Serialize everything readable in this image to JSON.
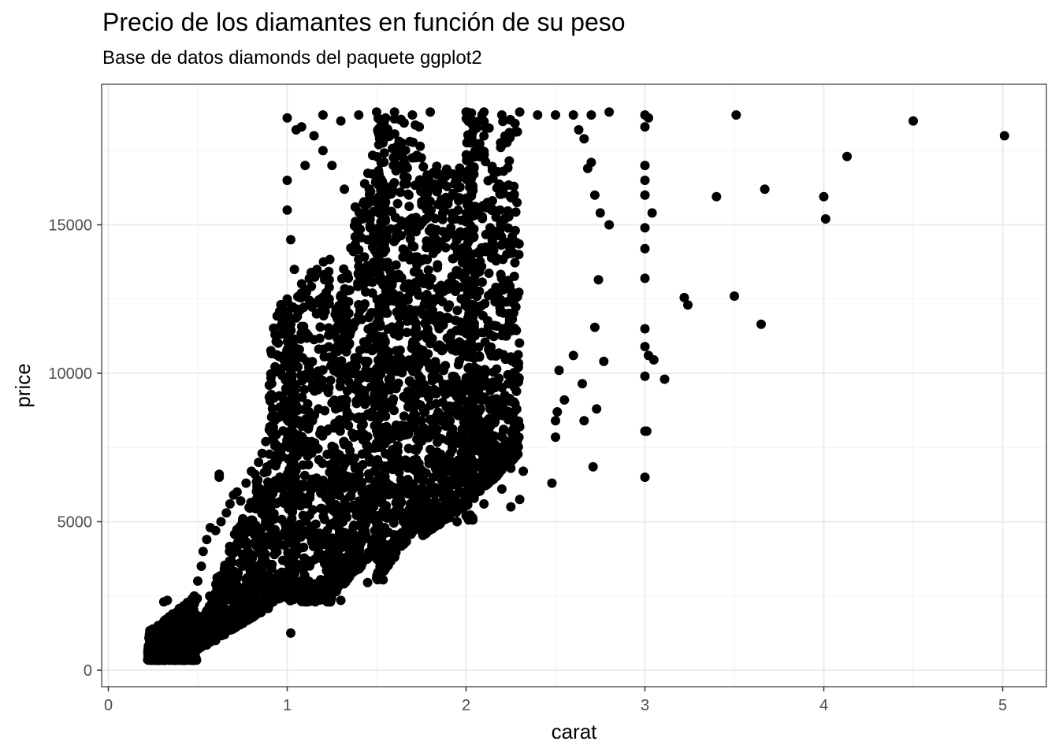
{
  "chart_data": {
    "type": "scatter",
    "title": "Precio de los diamantes en función de su peso",
    "subtitle": "Base de datos diamonds del paquete ggplot2",
    "xlabel": "carat",
    "ylabel": "price",
    "xlim": [
      0,
      5.2
    ],
    "ylim": [
      0,
      19000
    ],
    "x_ticks": [
      0,
      1,
      2,
      3,
      4,
      5
    ],
    "y_ticks": [
      0,
      5000,
      10000,
      15000
    ],
    "x_tick_labels": [
      "0",
      "1",
      "2",
      "3",
      "4",
      "5"
    ],
    "y_tick_labels": [
      "0",
      "5000",
      "10000",
      "15000"
    ],
    "grid": true,
    "point_color": "#000000",
    "series": [
      {
        "points": [
          [
            0.22,
            350
          ],
          [
            0.25,
            420
          ],
          [
            0.28,
            520
          ],
          [
            0.3,
            600
          ],
          [
            0.32,
            700
          ],
          [
            0.35,
            850
          ],
          [
            0.38,
            950
          ],
          [
            0.4,
            1000
          ],
          [
            0.42,
            1200
          ],
          [
            0.45,
            1400
          ],
          [
            0.5,
            1600
          ],
          [
            0.52,
            1800
          ],
          [
            0.55,
            2000
          ],
          [
            0.58,
            2300
          ],
          [
            0.6,
            2600
          ],
          [
            0.62,
            6600
          ],
          [
            0.62,
            6500
          ],
          [
            0.7,
            2800
          ],
          [
            0.72,
            3200
          ],
          [
            0.75,
            3500
          ],
          [
            0.8,
            3900
          ],
          [
            0.85,
            4100
          ],
          [
            0.9,
            9600
          ],
          [
            0.92,
            7800
          ],
          [
            1.02,
            1250
          ],
          [
            1.0,
            18600
          ],
          [
            1.05,
            18200
          ],
          [
            1.1,
            17000
          ],
          [
            1.2,
            18700
          ],
          [
            1.3,
            18500
          ],
          [
            1.4,
            18700
          ],
          [
            1.5,
            18800
          ],
          [
            1.55,
            18600
          ],
          [
            1.6,
            18800
          ],
          [
            1.7,
            18700
          ],
          [
            1.8,
            18800
          ],
          [
            2.0,
            18800
          ],
          [
            2.1,
            18800
          ],
          [
            2.2,
            18700
          ],
          [
            2.3,
            18800
          ],
          [
            2.4,
            18700
          ],
          [
            2.5,
            18700
          ],
          [
            2.6,
            18700
          ],
          [
            2.7,
            18700
          ],
          [
            2.8,
            18800
          ],
          [
            3.0,
            18700
          ],
          [
            3.02,
            18600
          ],
          [
            3.0,
            18300
          ],
          [
            3.0,
            17000
          ],
          [
            3.0,
            16500
          ],
          [
            3.0,
            16000
          ],
          [
            3.04,
            15400
          ],
          [
            3.0,
            14900
          ],
          [
            3.0,
            14200
          ],
          [
            3.0,
            13200
          ],
          [
            3.0,
            11500
          ],
          [
            3.0,
            10900
          ],
          [
            3.02,
            10600
          ],
          [
            3.05,
            10450
          ],
          [
            3.0,
            9900
          ],
          [
            3.11,
            9800
          ],
          [
            3.0,
            8050
          ],
          [
            3.01,
            8050
          ],
          [
            3.0,
            6500
          ],
          [
            3.22,
            12550
          ],
          [
            3.24,
            12300
          ],
          [
            3.4,
            15950
          ],
          [
            3.5,
            12600
          ],
          [
            3.51,
            18700
          ],
          [
            3.65,
            11650
          ],
          [
            3.67,
            16200
          ],
          [
            4.0,
            15950
          ],
          [
            4.01,
            15200
          ],
          [
            4.13,
            17300
          ],
          [
            4.5,
            18500
          ],
          [
            5.01,
            18000
          ],
          [
            2.48,
            6300
          ],
          [
            2.5,
            7850
          ],
          [
            2.5,
            8400
          ],
          [
            2.51,
            8700
          ],
          [
            2.52,
            10100
          ],
          [
            2.55,
            9100
          ],
          [
            2.6,
            10600
          ],
          [
            2.65,
            9650
          ],
          [
            2.66,
            8400
          ],
          [
            2.71,
            6850
          ],
          [
            2.72,
            11550
          ],
          [
            2.73,
            8800
          ],
          [
            2.74,
            13150
          ],
          [
            2.77,
            10400
          ],
          [
            2.75,
            15400
          ],
          [
            2.8,
            15000
          ],
          [
            2.72,
            16000
          ],
          [
            2.68,
            16900
          ],
          [
            2.7,
            17100
          ],
          [
            2.66,
            17900
          ],
          [
            2.63,
            18200
          ],
          [
            2.1,
            9100
          ],
          [
            2.2,
            9100
          ],
          [
            2.25,
            8500
          ],
          [
            2.3,
            8200
          ],
          [
            2.1,
            7600
          ],
          [
            2.15,
            7200
          ],
          [
            2.2,
            7000
          ],
          [
            2.25,
            6800
          ],
          [
            2.32,
            6700
          ],
          [
            2.2,
            6100
          ],
          [
            2.3,
            5750
          ],
          [
            2.25,
            5500
          ],
          [
            2.1,
            5600
          ],
          [
            2.0,
            5200
          ],
          [
            1.95,
            5000
          ],
          [
            1.9,
            6300
          ],
          [
            1.85,
            6600
          ],
          [
            1.75,
            6500
          ],
          [
            1.7,
            4700
          ],
          [
            1.65,
            5000
          ],
          [
            1.8,
            5500
          ],
          [
            1.9,
            6000
          ],
          [
            1.85,
            7000
          ],
          [
            1.8,
            8000
          ],
          [
            1.75,
            8400
          ],
          [
            1.7,
            9300
          ],
          [
            1.75,
            10600
          ],
          [
            1.8,
            11000
          ],
          [
            1.85,
            11500
          ],
          [
            1.82,
            12500
          ],
          [
            1.78,
            13200
          ],
          [
            1.7,
            14300
          ],
          [
            1.72,
            15000
          ],
          [
            1.68,
            16000
          ],
          [
            1.65,
            17000
          ],
          [
            1.45,
            2950
          ],
          [
            1.5,
            3100
          ],
          [
            1.52,
            3400
          ],
          [
            1.48,
            4000
          ],
          [
            1.4,
            4200
          ],
          [
            1.35,
            4500
          ],
          [
            1.3,
            5000
          ],
          [
            1.42,
            5600
          ],
          [
            1.47,
            6000
          ],
          [
            1.38,
            6800
          ],
          [
            1.32,
            7600
          ],
          [
            1.28,
            8200
          ],
          [
            1.25,
            9000
          ],
          [
            1.4,
            9800
          ],
          [
            1.45,
            10400
          ],
          [
            1.35,
            11300
          ],
          [
            1.3,
            12000
          ],
          [
            1.35,
            12800
          ],
          [
            1.4,
            13600
          ],
          [
            1.45,
            14500
          ],
          [
            1.42,
            15200
          ],
          [
            1.38,
            15600
          ],
          [
            1.32,
            16200
          ],
          [
            1.25,
            17000
          ],
          [
            1.2,
            17500
          ],
          [
            1.15,
            18000
          ],
          [
            1.08,
            18300
          ],
          [
            1.0,
            16500
          ],
          [
            1.0,
            15500
          ],
          [
            1.02,
            14500
          ],
          [
            1.04,
            13500
          ],
          [
            1.0,
            12500
          ],
          [
            1.01,
            11500
          ],
          [
            1.0,
            10500
          ],
          [
            1.02,
            9500
          ],
          [
            1.0,
            8500
          ],
          [
            1.01,
            7500
          ],
          [
            1.0,
            6500
          ],
          [
            1.03,
            5500
          ],
          [
            1.0,
            4800
          ],
          [
            1.05,
            4000
          ],
          [
            1.1,
            3500
          ],
          [
            1.12,
            3000
          ],
          [
            1.15,
            2700
          ],
          [
            1.2,
            2400
          ],
          [
            1.3,
            2350
          ],
          [
            1.25,
            2600
          ],
          [
            0.95,
            2400
          ],
          [
            0.9,
            2200
          ],
          [
            0.85,
            2000
          ],
          [
            0.8,
            1800
          ],
          [
            0.75,
            1600
          ],
          [
            0.7,
            1400
          ],
          [
            0.65,
            1200
          ],
          [
            0.6,
            1000
          ],
          [
            0.55,
            850
          ],
          [
            0.5,
            700
          ],
          [
            0.45,
            600
          ],
          [
            0.4,
            500
          ],
          [
            0.35,
            450
          ],
          [
            0.3,
            400
          ],
          [
            0.26,
            350
          ],
          [
            0.23,
            380
          ],
          [
            0.24,
            450
          ],
          [
            0.27,
            600
          ],
          [
            0.29,
            800
          ],
          [
            0.31,
            1000
          ],
          [
            0.33,
            1300
          ],
          [
            0.34,
            1800
          ],
          [
            0.31,
            2300
          ],
          [
            0.33,
            2350
          ],
          [
            0.36,
            1500
          ],
          [
            0.39,
            1700
          ],
          [
            0.41,
            1900
          ],
          [
            0.43,
            2100
          ],
          [
            0.46,
            2300
          ],
          [
            0.48,
            2500
          ],
          [
            0.5,
            3000
          ],
          [
            0.52,
            3500
          ],
          [
            0.53,
            4000
          ],
          [
            0.55,
            4400
          ],
          [
            0.57,
            4800
          ],
          [
            0.6,
            4700
          ],
          [
            0.63,
            5000
          ],
          [
            0.66,
            5300
          ],
          [
            0.68,
            5600
          ],
          [
            0.7,
            5900
          ],
          [
            0.72,
            6000
          ],
          [
            0.74,
            5700
          ],
          [
            0.77,
            6300
          ],
          [
            0.8,
            6700
          ],
          [
            0.82,
            6600
          ],
          [
            0.84,
            7000
          ],
          [
            0.86,
            7300
          ],
          [
            0.88,
            7700
          ],
          [
            0.9,
            8100
          ],
          [
            0.92,
            8600
          ],
          [
            0.9,
            9200
          ],
          [
            0.88,
            5000
          ],
          [
            0.86,
            4500
          ],
          [
            0.84,
            3000
          ],
          [
            0.82,
            2500
          ],
          [
            0.78,
            2100
          ],
          [
            0.7,
            1700
          ],
          [
            0.62,
            1400
          ],
          [
            0.58,
            1300
          ],
          [
            0.54,
            1100
          ],
          [
            0.47,
            900
          ],
          [
            0.37,
            650
          ],
          [
            0.28,
            500
          ],
          [
            0.32,
            550
          ],
          [
            0.42,
            800
          ],
          [
            0.52,
            1200
          ]
        ]
      }
    ]
  }
}
